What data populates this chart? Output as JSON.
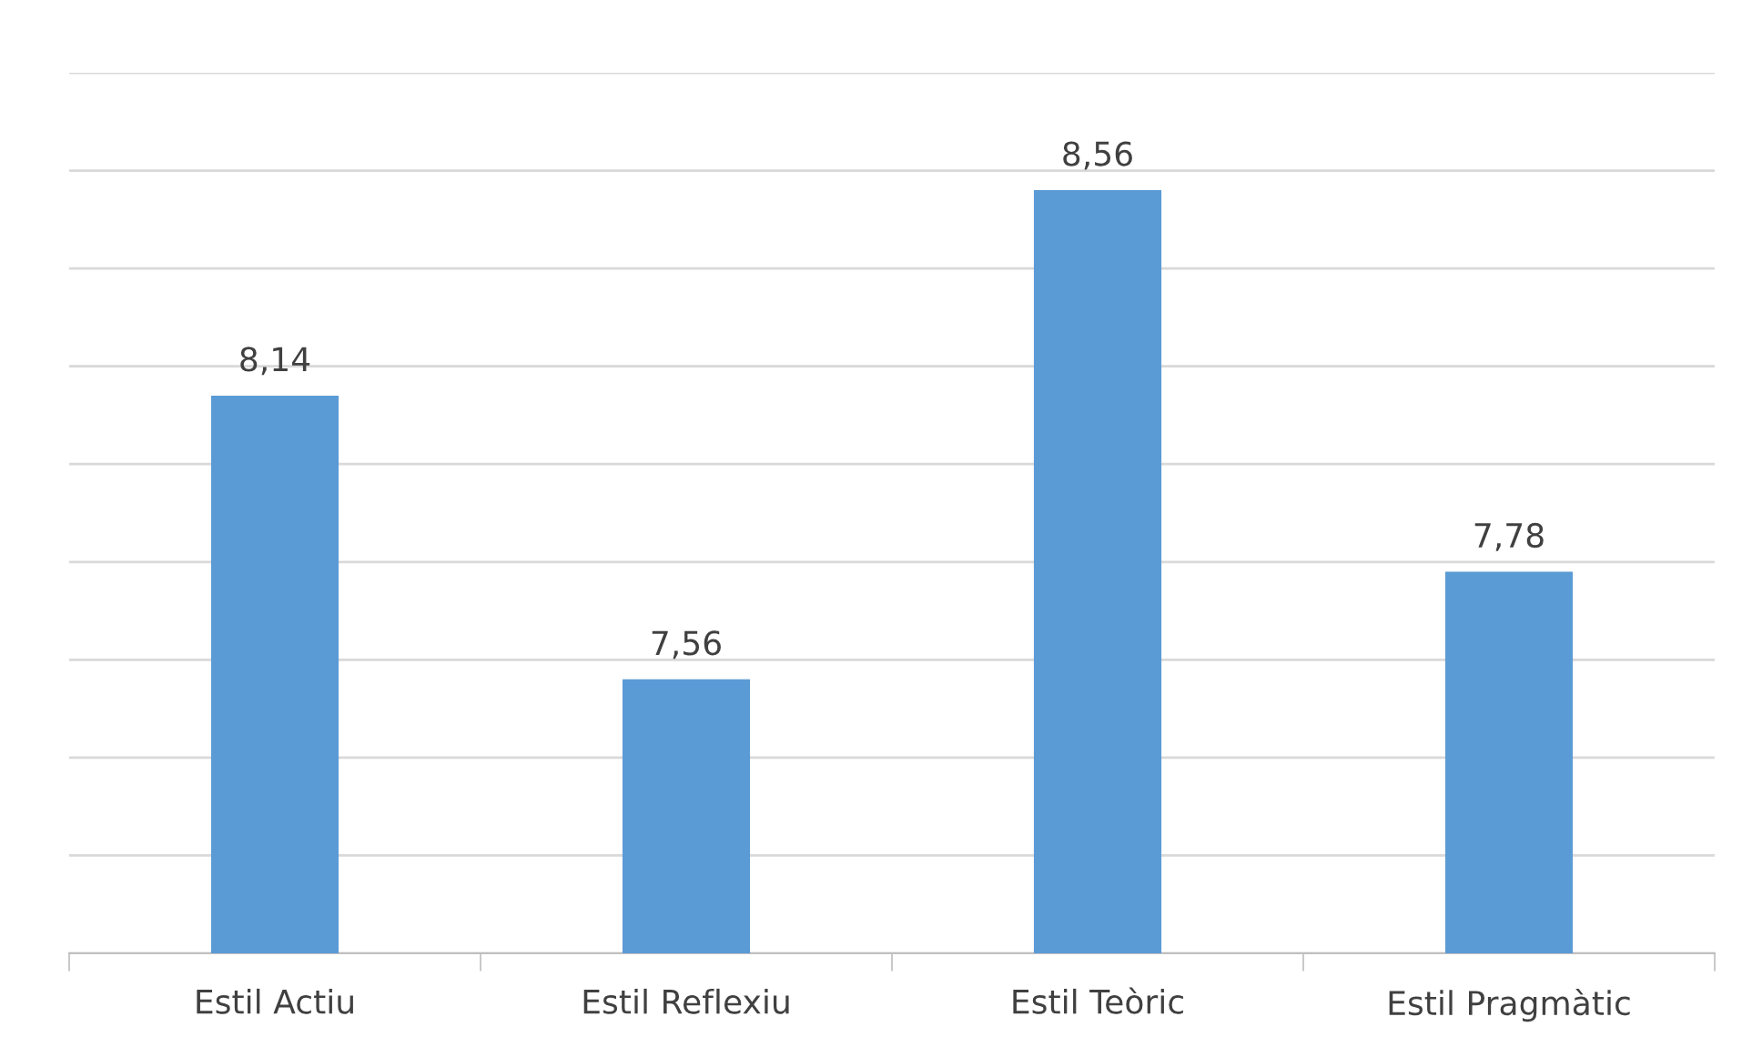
{
  "chart_data": {
    "type": "bar",
    "categories": [
      "Estil Actiu",
      "Estil Reflexiu",
      "Estil Teòric",
      "Estil Pragmàtic"
    ],
    "values": [
      8.14,
      7.56,
      8.56,
      7.78
    ],
    "color": "#5b9bd5",
    "ylim": [
      7,
      8.8
    ],
    "yticks": [
      {
        "value": 7,
        "label": null
      },
      {
        "value": 7.2,
        "label": null
      },
      {
        "value": 7.4,
        "label": null
      },
      {
        "value": 7.6,
        "label": null
      },
      {
        "value": 7.8,
        "label": null
      },
      {
        "value": 8,
        "label": null
      },
      {
        "value": 8.2,
        "label": null
      },
      {
        "value": 8.4,
        "label": null
      },
      {
        "value": 8.6,
        "label": null
      },
      {
        "value": 8.8,
        "label": null
      }
    ],
    "tick_labels": "x",
    "grid": "y",
    "value_labels": [
      "8,14",
      "7,56",
      "8,56",
      "7,78"
    ]
  }
}
